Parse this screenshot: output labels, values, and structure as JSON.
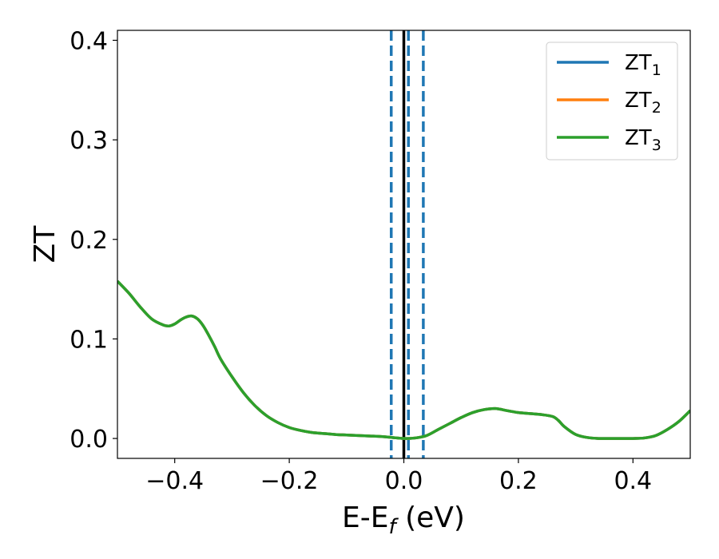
{
  "chart_data": {
    "type": "line",
    "xlabel": {
      "main": "E-E",
      "sub": "f",
      "unit": " (eV)"
    },
    "ylabel": "ZT",
    "xlim": [
      -0.5,
      0.5
    ],
    "ylim": [
      -0.02,
      0.41
    ],
    "x_ticks": [
      -0.4,
      -0.2,
      0.0,
      0.2,
      0.4
    ],
    "x_tick_labels": [
      "−0.4",
      "−0.2",
      "0.0",
      "0.2",
      "0.4"
    ],
    "y_ticks": [
      0.0,
      0.1,
      0.2,
      0.3,
      0.4
    ],
    "y_tick_labels": [
      "0.0",
      "0.1",
      "0.2",
      "0.3",
      "0.4"
    ],
    "grid": false,
    "legend_position": "top-right",
    "vertical_lines": [
      {
        "x": -0.022,
        "style": "dashed",
        "color": "#1f77b4"
      },
      {
        "x": 0.008,
        "style": "dashed",
        "color": "#1f77b4"
      },
      {
        "x": 0.034,
        "style": "dashed",
        "color": "#1f77b4"
      },
      {
        "x": 0.0,
        "style": "solid",
        "color": "#000000"
      }
    ],
    "x": [
      -0.5,
      -0.48,
      -0.46,
      -0.44,
      -0.42,
      -0.41,
      -0.4,
      -0.39,
      -0.38,
      -0.37,
      -0.36,
      -0.35,
      -0.34,
      -0.33,
      -0.32,
      -0.3,
      -0.28,
      -0.26,
      -0.24,
      -0.22,
      -0.2,
      -0.18,
      -0.16,
      -0.14,
      -0.12,
      -0.1,
      -0.08,
      -0.06,
      -0.04,
      -0.02,
      0.0,
      0.02,
      0.04,
      0.06,
      0.08,
      0.1,
      0.12,
      0.14,
      0.16,
      0.18,
      0.2,
      0.22,
      0.24,
      0.26,
      0.27,
      0.28,
      0.3,
      0.32,
      0.34,
      0.36,
      0.38,
      0.4,
      0.42,
      0.44,
      0.46,
      0.48,
      0.5
    ],
    "series": [
      {
        "name": "ZT₁",
        "label_main": "ZT",
        "label_sub": "1",
        "color": "#1f77b4",
        "values": [
          0.158,
          0.146,
          0.132,
          0.12,
          0.114,
          0.113,
          0.115,
          0.119,
          0.122,
          0.123,
          0.12,
          0.113,
          0.103,
          0.092,
          0.08,
          0.062,
          0.046,
          0.033,
          0.023,
          0.016,
          0.011,
          0.008,
          0.006,
          0.005,
          0.004,
          0.0035,
          0.003,
          0.0025,
          0.002,
          0.001,
          0.0,
          0.0005,
          0.003,
          0.009,
          0.015,
          0.021,
          0.026,
          0.029,
          0.03,
          0.028,
          0.026,
          0.025,
          0.024,
          0.022,
          0.018,
          0.012,
          0.004,
          0.001,
          0.0,
          0.0,
          0.0,
          0.0,
          0.0005,
          0.003,
          0.009,
          0.017,
          0.028
        ]
      },
      {
        "name": "ZT₂",
        "label_main": "ZT",
        "label_sub": "2",
        "color": "#ff7f0e",
        "values": [
          0.158,
          0.146,
          0.132,
          0.12,
          0.114,
          0.113,
          0.115,
          0.119,
          0.122,
          0.123,
          0.12,
          0.113,
          0.103,
          0.092,
          0.08,
          0.062,
          0.046,
          0.033,
          0.023,
          0.016,
          0.011,
          0.008,
          0.006,
          0.005,
          0.004,
          0.0035,
          0.003,
          0.0025,
          0.002,
          0.001,
          0.0,
          0.0005,
          0.003,
          0.009,
          0.015,
          0.021,
          0.026,
          0.029,
          0.03,
          0.028,
          0.026,
          0.025,
          0.024,
          0.022,
          0.018,
          0.012,
          0.004,
          0.001,
          0.0,
          0.0,
          0.0,
          0.0,
          0.0005,
          0.003,
          0.009,
          0.017,
          0.028
        ]
      },
      {
        "name": "ZT₃",
        "label_main": "ZT",
        "label_sub": "3",
        "color": "#2ca02c",
        "values": [
          0.158,
          0.146,
          0.132,
          0.12,
          0.114,
          0.113,
          0.115,
          0.119,
          0.122,
          0.123,
          0.12,
          0.113,
          0.103,
          0.092,
          0.08,
          0.062,
          0.046,
          0.033,
          0.023,
          0.016,
          0.011,
          0.008,
          0.006,
          0.005,
          0.004,
          0.0035,
          0.003,
          0.0025,
          0.002,
          0.001,
          0.0,
          0.0005,
          0.003,
          0.009,
          0.015,
          0.021,
          0.026,
          0.029,
          0.03,
          0.028,
          0.026,
          0.025,
          0.024,
          0.022,
          0.018,
          0.012,
          0.004,
          0.001,
          0.0,
          0.0,
          0.0,
          0.0,
          0.0005,
          0.003,
          0.009,
          0.017,
          0.028
        ]
      }
    ]
  }
}
